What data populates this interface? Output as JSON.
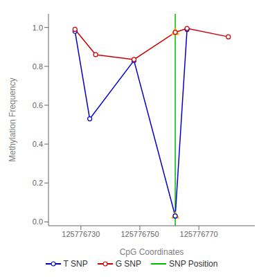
{
  "chart_data": {
    "type": "line",
    "title": "",
    "xlabel": "CpG Coordinates",
    "ylabel": "Methylation Frequency",
    "series": [
      {
        "name": "T SNP",
        "type": "line",
        "color": "#0000cc",
        "marker": "o",
        "x": [
          125776728,
          125776733,
          125776748,
          125776762,
          125776766
        ],
        "values": [
          0.98,
          0.53,
          0.83,
          0.03,
          0.99
        ]
      },
      {
        "name": "G SNP",
        "type": "line",
        "color": "#cc0000",
        "marker": "o",
        "x": [
          125776728,
          125776735,
          125776748,
          125776762,
          125776766,
          125776780
        ],
        "values": [
          0.99,
          0.86,
          0.835,
          0.975,
          0.995,
          0.952
        ]
      },
      {
        "name": "SNP Position",
        "type": "vline",
        "color": "#00bb00",
        "x": [
          125776762
        ]
      },
      {
        "type": "scatter",
        "color": "#ffaa00",
        "marker": "^",
        "x": [
          125776762,
          125776762
        ],
        "values": [
          0.03,
          0.975
        ]
      }
    ],
    "xlim": [
      125776719,
      125776789
    ],
    "xticks": [
      125776730,
      125776750,
      125776770
    ],
    "ylim": [
      -0.02,
      1.07
    ],
    "yticks": [
      {
        "value": 0,
        "label": "0.0"
      },
      0.2,
      0.4,
      0.6,
      0.8,
      {
        "value": 1,
        "label": "1.0"
      }
    ],
    "legend": "bottom"
  }
}
